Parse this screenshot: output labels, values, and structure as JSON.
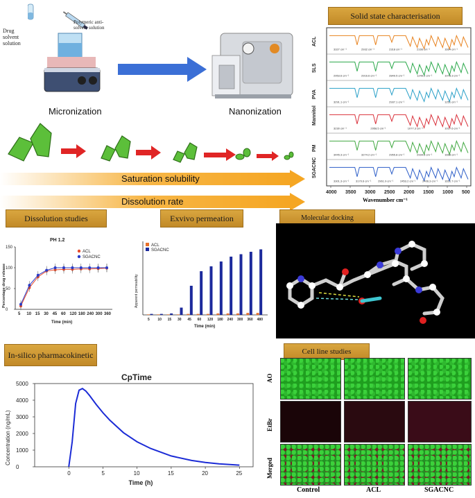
{
  "top_left": {
    "drug_solvent_label": "Drug solvent solution",
    "polymeric_label": "Polymeric anti-solvent solution",
    "micronization_label": "Micronization",
    "nanonization_label": "Nanonization",
    "saturation_label": "Saturation solubility",
    "dissolution_rate_label": "Dissolution rate"
  },
  "solid_state": {
    "title": "Solid state characterisation",
    "x_axis_label": "Wavenumber cm⁻¹",
    "x_ticks": [
      "4000",
      "3500",
      "3000",
      "2500",
      "2000",
      "1500",
      "1000",
      "500"
    ],
    "rows": [
      {
        "name": "ACL",
        "color": "#e8821e"
      },
      {
        "name": "SLS",
        "color": "#2aa84a"
      },
      {
        "name": "PVA",
        "color": "#2aa0c8"
      },
      {
        "name": "Mannitol",
        "color": "#d9303a"
      },
      {
        "name": "PM",
        "color": "#40a840"
      },
      {
        "name": "SGACNC",
        "color": "#2d5ec8"
      }
    ],
    "peak_labels": {
      "acl": [
        "3327 cm⁻¹",
        "2932 cm⁻¹",
        "2318 cm⁻¹",
        "2166 cm⁻¹",
        "1664 cm⁻¹"
      ],
      "sls": [
        "2953.6 cm⁻¹",
        "2916.6 cm⁻¹",
        "2849.5 cm⁻¹",
        "1249.2 cm⁻¹",
        "1078.3 cm⁻¹"
      ],
      "pva": [
        "3291.1 cm⁻¹",
        "2937.1 cm⁻¹",
        "1251 cm⁻¹"
      ],
      "mannitol": [
        "3230 cm⁻¹",
        "2958.5 cm⁻¹",
        "1077.3 cm⁻¹",
        "1017.6 cm⁻¹"
      ],
      "pm": [
        "3445.3 cm⁻¹",
        "3274.2 cm⁻¹",
        "2955.8 cm⁻¹",
        "2934.6 cm⁻¹",
        "1668 cm⁻¹"
      ],
      "sgacnc": [
        "3301.3 cm⁻¹",
        "3170.6 cm⁻¹",
        "2961.9 cm⁻¹",
        "2453.2 cm⁻¹",
        "2406.3 cm⁻¹",
        "1651.7 cm⁻¹"
      ]
    }
  },
  "dissolution": {
    "title": "Dissolution studies",
    "chart_title": "PH 1.2",
    "ylabel": "Percentage drug release",
    "xlabel": "Time (min)",
    "legend": [
      "ACL",
      "SGACNC"
    ]
  },
  "exvivo": {
    "title": "Exvivo permeation",
    "ylabel": "Apparent permeability",
    "xlabel": "Time (min)",
    "legend": [
      "ACL",
      "SGACNC"
    ]
  },
  "docking": {
    "title": "Molecular docking"
  },
  "insilico": {
    "title": "In-silico pharmacokinetic"
  },
  "cpt": {
    "title": "CpTime",
    "ylabel": "Concentration (ng/mL)",
    "xlabel": "Time (h)"
  },
  "cellline": {
    "title": "Cell line studies",
    "row_labels": [
      "AO",
      "EtBr",
      "Merged"
    ],
    "col_labels": [
      "Control",
      "ACL",
      "SGACNC"
    ]
  },
  "colors": {
    "gold": "#d19b35",
    "arrow_red": "#e02525",
    "arrow_orange": "#f5a623",
    "leaf_green": "#5cbf3a",
    "line_blue": "#1b2bd6"
  },
  "chart_data": [
    {
      "type": "line",
      "title": "PH 1.2",
      "xlabel": "Time (min)",
      "ylabel": "Percentage drug release",
      "x": [
        "5",
        "10",
        "15",
        "30",
        "45",
        "60",
        "120",
        "180",
        "240",
        "300",
        "360"
      ],
      "ylim": [
        0,
        150
      ],
      "series": [
        {
          "name": "ACL",
          "values": [
            8,
            52,
            78,
            92,
            95,
            96,
            96,
            97,
            97,
            98,
            99
          ]
        },
        {
          "name": "SGACNC",
          "values": [
            12,
            58,
            82,
            94,
            100,
            100,
            100,
            100,
            100,
            100,
            100
          ]
        }
      ]
    },
    {
      "type": "bar",
      "xlabel": "Time (min)",
      "ylabel": "Apparent permeability",
      "categories": [
        "5",
        "10",
        "15",
        "30",
        "45",
        "60",
        "120",
        "180",
        "240",
        "300",
        "360",
        "480"
      ],
      "series": [
        {
          "name": "ACL",
          "values": [
            1,
            1,
            1,
            1,
            2,
            2,
            2,
            3,
            3,
            3,
            4,
            4
          ]
        },
        {
          "name": "SGACNC",
          "values": [
            2,
            2,
            3,
            15,
            60,
            90,
            100,
            110,
            120,
            125,
            130,
            135
          ]
        }
      ]
    },
    {
      "type": "line",
      "title": "CpTime",
      "xlabel": "Time (h)",
      "ylabel": "Concentration (ng/mL)",
      "xlim": [
        -5,
        27
      ],
      "ylim": [
        0,
        5000
      ],
      "x_ticks": [
        0,
        5,
        10,
        15,
        20,
        25
      ],
      "y_ticks": [
        0,
        1000,
        2000,
        3000,
        4000,
        5000
      ],
      "series": [
        {
          "name": "",
          "x": [
            0,
            0.5,
            1,
            1.5,
            2,
            2.5,
            3,
            4,
            5,
            6,
            8,
            10,
            12,
            15,
            18,
            20,
            22,
            25
          ],
          "values": [
            0,
            1500,
            3800,
            4600,
            4700,
            4550,
            4300,
            3750,
            3250,
            2800,
            2050,
            1500,
            1100,
            650,
            380,
            260,
            180,
            100
          ]
        }
      ]
    }
  ]
}
